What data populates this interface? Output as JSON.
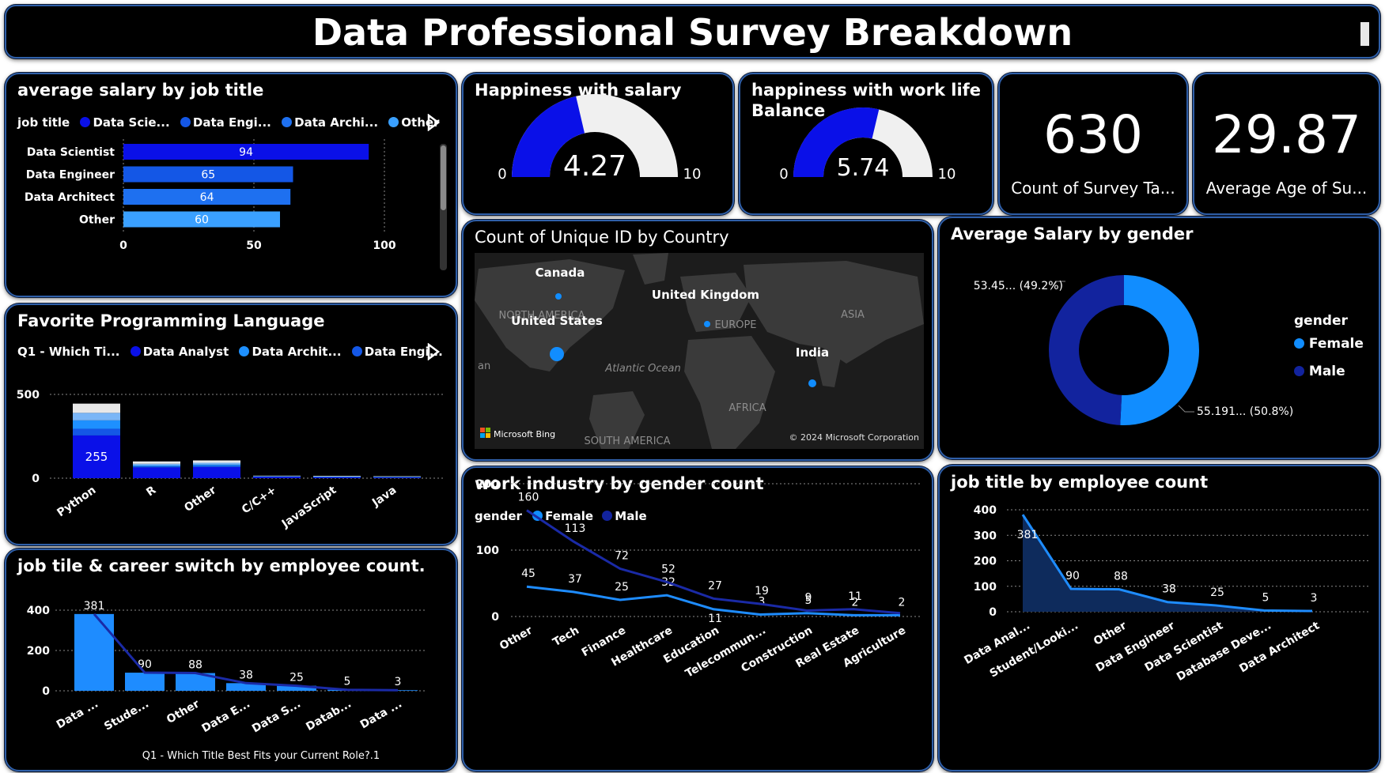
{
  "title": "Data Professional Survey Breakdown",
  "cards": {
    "count_value": "630",
    "count_label": "Count of Survey Ta...",
    "age_value": "29.87",
    "age_label": "Average Age of Su..."
  },
  "gauges": [
    {
      "title": "Happiness with salary",
      "value": 4.27,
      "value_label": "4.27",
      "min_label": "0",
      "max_label": "10",
      "min": 0,
      "max": 10
    },
    {
      "title": "happiness with work life Balance",
      "title_line1": "happiness with work life",
      "title_line2": "Balance",
      "value": 5.74,
      "value_label": "5.74",
      "min_label": "0",
      "max_label": "10",
      "min": 0,
      "max": 10
    }
  ],
  "map": {
    "title": "Count of Unique ID by Country",
    "labels": [
      "Canada",
      "United Kingdom",
      "United States",
      "India"
    ],
    "region_labels": [
      "NORTH AMERICA",
      "EUROPE",
      "ASIA",
      "Atlantic Ocean",
      "AFRICA",
      "SOUTH AMERICA",
      "an"
    ],
    "bing": "Microsoft Bing",
    "copyright": "© 2024 Microsoft Corporation"
  },
  "colors": {
    "dark_navy": "#1a2aa6",
    "blue": "#0a10e8",
    "mid_blue": "#1457e6",
    "light_blue": "#1e90ff",
    "female": "#118dff",
    "male": "#12239e",
    "border": "#2f5fa8"
  },
  "chart_data": [
    {
      "id": "avg_salary_job",
      "type": "bar",
      "orientation": "horizontal",
      "title": "average salary by job title",
      "legend_title": "job title",
      "legend": [
        "Data Scie...",
        "Data Engi...",
        "Data Archi...",
        "Other"
      ],
      "legend_colors": [
        "#0a10e8",
        "#1457e6",
        "#1e70f0",
        "#3aa0ff"
      ],
      "categories": [
        "Data Scientist",
        "Data Engineer",
        "Data Architect",
        "Other"
      ],
      "values": [
        94,
        65,
        64,
        60
      ],
      "value_labels": [
        "94",
        "65",
        "64",
        "60"
      ],
      "xlim": [
        0,
        100
      ],
      "ticks": [
        "0",
        "50",
        "100"
      ]
    },
    {
      "id": "fav_language",
      "type": "bar",
      "stacked": true,
      "title": "Favorite Programming Language",
      "legend_title": "Q1 - Which Ti...",
      "legend": [
        "Data Analyst",
        "Data Archit...",
        "Data Engi..."
      ],
      "legend_colors": [
        "#0a10e8",
        "#1e90ff",
        "#1457e6"
      ],
      "categories": [
        "Python",
        "R",
        "Other",
        "C/C++",
        "JavaScript",
        "Java"
      ],
      "series": [
        {
          "values": [
            255,
            64,
            66,
            7,
            5,
            4
          ],
          "color": "#0a10e8"
        },
        {
          "values": [
            40,
            6,
            8,
            2,
            2,
            2
          ],
          "color": "#1457e6"
        },
        {
          "values": [
            50,
            6,
            7,
            2,
            2,
            2
          ],
          "color": "#1e90ff"
        },
        {
          "values": [
            45,
            10,
            11,
            2,
            2,
            2
          ],
          "color": "#7ab6f7"
        },
        {
          "values": [
            55,
            14,
            14,
            2,
            3,
            2
          ],
          "color": "#e8e8e8"
        }
      ],
      "data_labels": [
        "255"
      ],
      "ylim": [
        0,
        500
      ],
      "ticks": [
        "0",
        "500"
      ]
    },
    {
      "id": "job_career_switch",
      "type": "bar",
      "title": "job tile & career switch by employee count.",
      "xlabel": "Q1 - Which Title Best Fits your Current Role?.1",
      "categories": [
        "Data ...",
        "Stude...",
        "Other",
        "Data E...",
        "Data S...",
        "Datab...",
        "Data ..."
      ],
      "values": [
        381,
        90,
        88,
        38,
        25,
        5,
        3
      ],
      "value_labels": [
        "381",
        "90",
        "88",
        "38",
        "25",
        "5",
        "3"
      ],
      "ylim": [
        0,
        400
      ],
      "ticks": [
        "0",
        "200",
        "400"
      ]
    },
    {
      "id": "avg_salary_gender",
      "type": "pie",
      "donut": true,
      "title": "Average Salary by gender",
      "legend_title": "gender",
      "legend": [
        "Female",
        "Male"
      ],
      "legend_colors": [
        "#118dff",
        "#12239e"
      ],
      "slices": [
        {
          "name": "Female",
          "value": 55.191,
          "percent": 50.8,
          "label": "55.191... (50.8%)",
          "color": "#118dff"
        },
        {
          "name": "Male",
          "value": 53.45,
          "percent": 49.2,
          "label": "53.45... (49.2%)",
          "color": "#12239e"
        }
      ]
    },
    {
      "id": "industry_gender",
      "type": "line",
      "title": "work industry by gender count",
      "legend_title": "gender",
      "legend": [
        "Female",
        "Male"
      ],
      "legend_colors": [
        "#118dff",
        "#12239e"
      ],
      "categories": [
        "Other",
        "Tech",
        "Finance",
        "Healthcare",
        "Education",
        "Telecommun...",
        "Construction",
        "Real Estate",
        "Agriculture"
      ],
      "series": [
        {
          "name": "Female",
          "values": [
            45,
            37,
            25,
            32,
            11,
            3,
            5,
            2,
            2
          ],
          "color": "#1e8cff",
          "labels": [
            "45",
            "37",
            "25",
            "32",
            "11",
            "3",
            "5",
            "2",
            "2"
          ]
        },
        {
          "name": "Male",
          "values": [
            160,
            113,
            72,
            52,
            27,
            19,
            9,
            11,
            5
          ],
          "color": "#1a2aa6",
          "labels": [
            "160",
            "113",
            "72",
            "52",
            "27",
            "19",
            "9",
            "11",
            ""
          ]
        }
      ],
      "ylim": [
        0,
        200
      ],
      "ticks": [
        "0",
        "100",
        "200"
      ]
    },
    {
      "id": "job_title_count",
      "type": "area",
      "title": "job title by employee count",
      "categories": [
        "Data Anal...",
        "Student/Looki...",
        "Other",
        "Data Engineer",
        "Data Scientist",
        "Database Deve...",
        "Data Architect"
      ],
      "values": [
        381,
        90,
        88,
        38,
        25,
        5,
        3
      ],
      "value_labels": [
        "381",
        "90",
        "88",
        "38",
        "25",
        "5",
        "3"
      ],
      "ylim": [
        0,
        400
      ],
      "ticks": [
        "0",
        "100",
        "200",
        "300",
        "400"
      ]
    }
  ]
}
